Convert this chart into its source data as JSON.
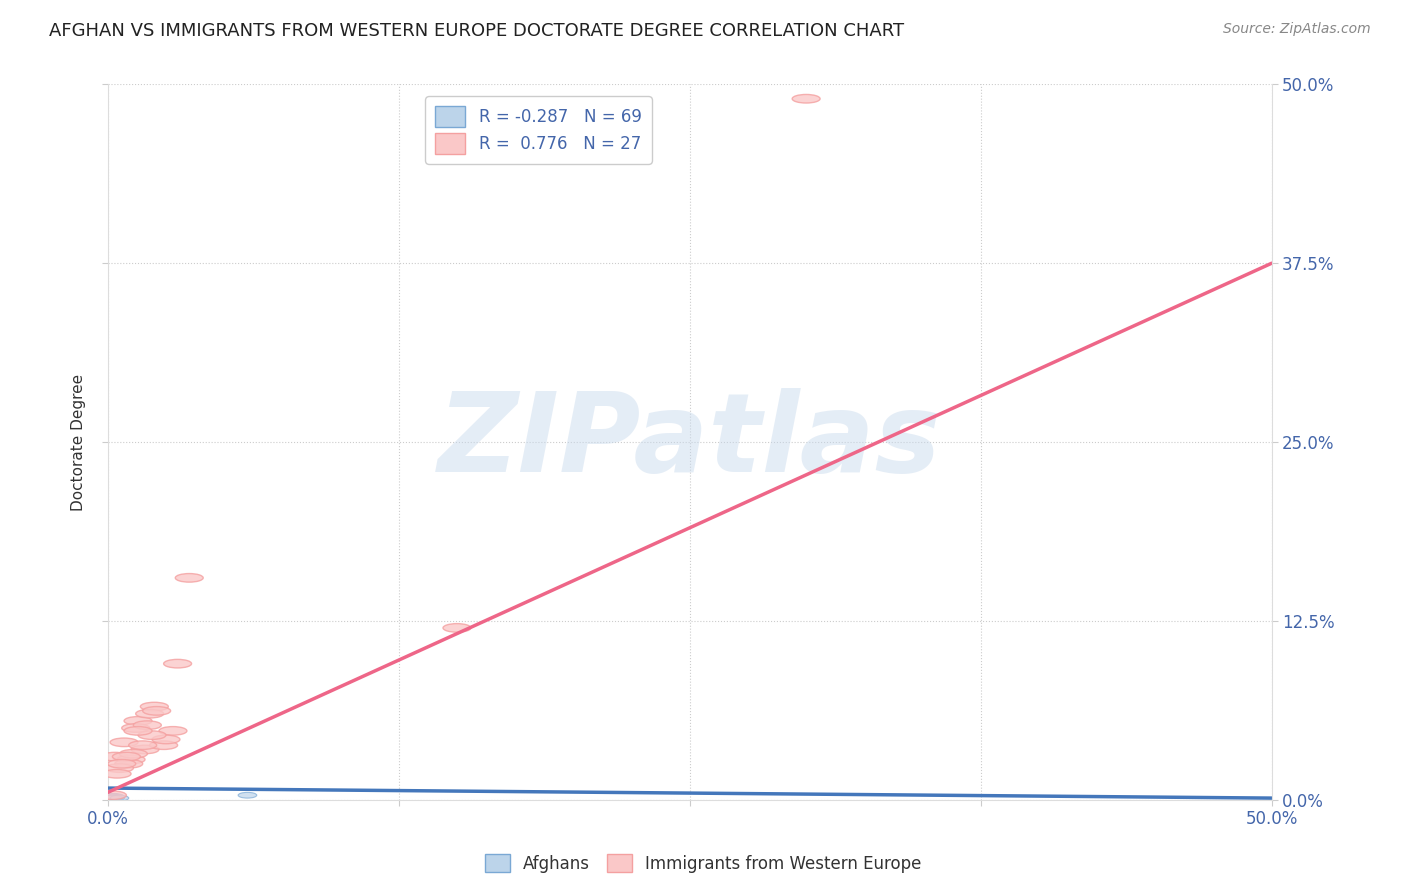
{
  "title": "AFGHAN VS IMMIGRANTS FROM WESTERN EUROPE DOCTORATE DEGREE CORRELATION CHART",
  "source": "Source: ZipAtlas.com",
  "ylabel": "Doctorate Degree",
  "xlim": [
    0.0,
    0.5
  ],
  "ylim": [
    0.0,
    0.5
  ],
  "xticks": [
    0.0,
    0.125,
    0.25,
    0.375,
    0.5
  ],
  "yticks": [
    0.0,
    0.125,
    0.25,
    0.375,
    0.5
  ],
  "xticklabels": [
    "0.0%",
    "",
    "",
    "",
    "50.0%"
  ],
  "yticklabels_right": [
    "0.0%",
    "12.5%",
    "25.0%",
    "37.5%",
    "50.0%"
  ],
  "grid_color": "#cccccc",
  "background_color": "#ffffff",
  "legend_R1": "R = -0.287",
  "legend_N1": "N = 69",
  "legend_R2": "R =  0.776",
  "legend_N2": "N = 27",
  "blue_color": "#7aa8d4",
  "pink_color": "#f4a0a0",
  "blue_fill": "#bcd4ea",
  "pink_fill": "#fac8c8",
  "watermark_text": "ZIPatlas",
  "blue_scatter_x": [
    0.001,
    0.002,
    0.001,
    0.003,
    0.002,
    0.001,
    0.002,
    0.003,
    0.001,
    0.002,
    0.003,
    0.002,
    0.001,
    0.002,
    0.001,
    0.002,
    0.001,
    0.002,
    0.003,
    0.002,
    0.001,
    0.001,
    0.002,
    0.002,
    0.003,
    0.001,
    0.003,
    0.002,
    0.001,
    0.002,
    0.001,
    0.002,
    0.002,
    0.001,
    0.002,
    0.001,
    0.002,
    0.002,
    0.001,
    0.002,
    0.002,
    0.001,
    0.001,
    0.002,
    0.002,
    0.001,
    0.002,
    0.001,
    0.002,
    0.001,
    0.002,
    0.001,
    0.002,
    0.001,
    0.003,
    0.002,
    0.001,
    0.002,
    0.001,
    0.002,
    0.001,
    0.002,
    0.002,
    0.001,
    0.002,
    0.001,
    0.002,
    0.06,
    0.005
  ],
  "blue_scatter_y": [
    0.002,
    0.001,
    0.001,
    0.002,
    0.001,
    0.001,
    0.002,
    0.001,
    0.001,
    0.001,
    0.001,
    0.002,
    0.001,
    0.001,
    0.001,
    0.002,
    0.001,
    0.001,
    0.001,
    0.001,
    0.002,
    0.001,
    0.001,
    0.001,
    0.001,
    0.002,
    0.001,
    0.001,
    0.001,
    0.001,
    0.002,
    0.001,
    0.001,
    0.002,
    0.001,
    0.001,
    0.001,
    0.001,
    0.002,
    0.001,
    0.001,
    0.001,
    0.001,
    0.001,
    0.002,
    0.001,
    0.001,
    0.001,
    0.001,
    0.002,
    0.001,
    0.001,
    0.001,
    0.001,
    0.002,
    0.001,
    0.001,
    0.001,
    0.002,
    0.001,
    0.001,
    0.001,
    0.001,
    0.002,
    0.001,
    0.001,
    0.001,
    0.003,
    0.001
  ],
  "pink_scatter_x": [
    0.003,
    0.007,
    0.01,
    0.013,
    0.016,
    0.02,
    0.024,
    0.028,
    0.009,
    0.012,
    0.015,
    0.018,
    0.005,
    0.011,
    0.021,
    0.025,
    0.004,
    0.017,
    0.03,
    0.008,
    0.019,
    0.006,
    0.013,
    0.3,
    0.15,
    0.002,
    0.035
  ],
  "pink_scatter_y": [
    0.03,
    0.04,
    0.028,
    0.055,
    0.035,
    0.065,
    0.038,
    0.048,
    0.025,
    0.05,
    0.038,
    0.06,
    0.022,
    0.032,
    0.062,
    0.042,
    0.018,
    0.052,
    0.095,
    0.03,
    0.045,
    0.025,
    0.048,
    0.49,
    0.12,
    0.003,
    0.155
  ],
  "blue_line_x": [
    0.0,
    0.5
  ],
  "blue_line_y": [
    0.008,
    0.001
  ],
  "pink_line_x": [
    0.0,
    0.5
  ],
  "pink_line_y": [
    0.005,
    0.375
  ]
}
